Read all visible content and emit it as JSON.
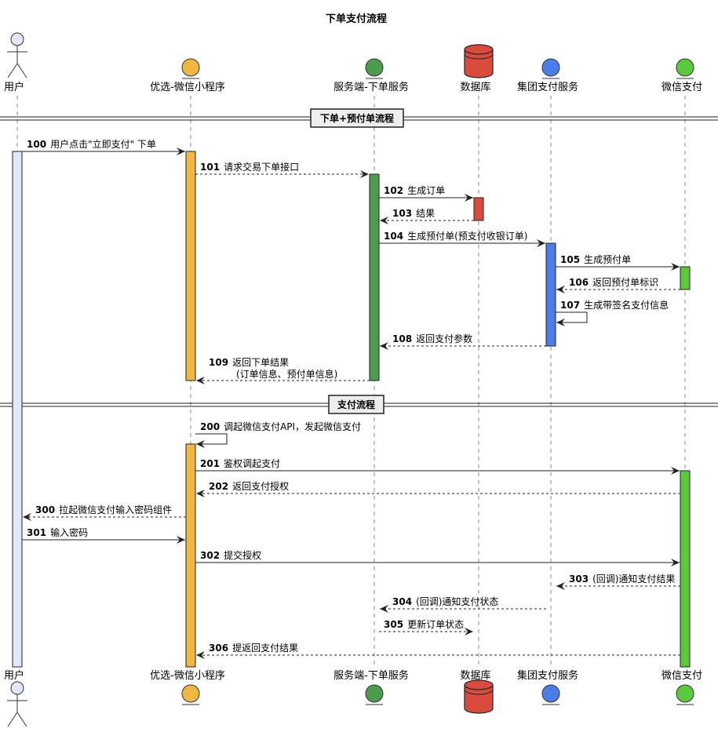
{
  "title": "下单支付流程",
  "participants": [
    {
      "id": "user",
      "label": "用户",
      "kind": "actor",
      "color": "#e2e8fb"
    },
    {
      "id": "mini",
      "label": "优选-微信小程序",
      "kind": "circle",
      "color": "#f1b742"
    },
    {
      "id": "order",
      "label": "服务端-下单服务",
      "kind": "circle",
      "color": "#4c9c4e"
    },
    {
      "id": "db",
      "label": "数据库",
      "kind": "database",
      "color": "#db4b3d"
    },
    {
      "id": "group",
      "label": "集团支付服务",
      "kind": "circle",
      "color": "#4b7ee9"
    },
    {
      "id": "wx",
      "label": "微信支付",
      "kind": "circle",
      "color": "#5ac93b"
    }
  ],
  "sections": [
    {
      "label": "下单+预付单流程"
    },
    {
      "label": "支付流程"
    }
  ],
  "messages": [
    {
      "num": "100",
      "text": "用户点击\"立即支付\" 下单"
    },
    {
      "num": "101",
      "text": "请求交易下单接口"
    },
    {
      "num": "102",
      "text": "生成订单"
    },
    {
      "num": "103",
      "text": "结果"
    },
    {
      "num": "104",
      "text": "生成预付单(预支付收银订单)"
    },
    {
      "num": "105",
      "text": "生成预付单"
    },
    {
      "num": "106",
      "text": "返回预付单标识"
    },
    {
      "num": "107",
      "text": "生成带签名支付信息"
    },
    {
      "num": "108",
      "text": "返回支付参数"
    },
    {
      "num": "109",
      "text": "返回下单结果",
      "text2": "(订单信息、预付单信息)"
    },
    {
      "num": "200",
      "text": "调起微信支付API，发起微信支付"
    },
    {
      "num": "201",
      "text": "鉴权调起支付"
    },
    {
      "num": "202",
      "text": "返回支付授权"
    },
    {
      "num": "300",
      "text": "拉起微信支付输入密码组件"
    },
    {
      "num": "301",
      "text": "输入密码"
    },
    {
      "num": "302",
      "text": "提交授权"
    },
    {
      "num": "303",
      "text": "(回调)通知支付结果"
    },
    {
      "num": "304",
      "text": "(回调)通知支付状态"
    },
    {
      "num": "305",
      "text": "更新订单状态"
    },
    {
      "num": "306",
      "text": "提返回支付结果"
    }
  ]
}
